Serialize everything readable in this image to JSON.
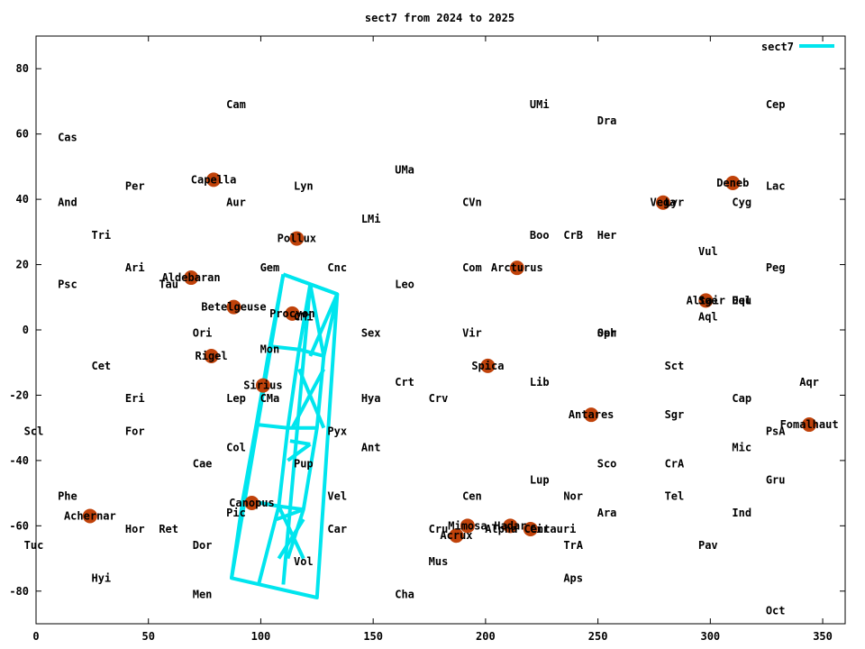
{
  "chart_data": {
    "type": "scatter",
    "title": "sect7 from 2024 to 2025",
    "xlabel": "",
    "ylabel": "",
    "xlim": [
      0,
      360
    ],
    "ylim": [
      -90,
      90
    ],
    "x_ticks": [
      0,
      50,
      100,
      150,
      200,
      250,
      300,
      350
    ],
    "y_ticks": [
      -80,
      -60,
      -40,
      -20,
      0,
      20,
      40,
      60,
      80
    ],
    "grid": false,
    "legend": {
      "position": "top-right",
      "entries": [
        {
          "name": "sect7",
          "color": "#00e5ee"
        }
      ]
    },
    "colors": {
      "series": "#00e5ee",
      "star": "#c0420a",
      "axes": "#000000"
    },
    "constellations": [
      {
        "name": "Cam",
        "x": 89,
        "y": 69
      },
      {
        "name": "UMi",
        "x": 224,
        "y": 69
      },
      {
        "name": "Cep",
        "x": 329,
        "y": 69
      },
      {
        "name": "Cas",
        "x": 14,
        "y": 59
      },
      {
        "name": "Dra",
        "x": 254,
        "y": 64
      },
      {
        "name": "UMa",
        "x": 164,
        "y": 49
      },
      {
        "name": "Per",
        "x": 44,
        "y": 44
      },
      {
        "name": "Lyn",
        "x": 119,
        "y": 44
      },
      {
        "name": "Lac",
        "x": 329,
        "y": 44
      },
      {
        "name": "And",
        "x": 14,
        "y": 39
      },
      {
        "name": "Aur",
        "x": 89,
        "y": 39
      },
      {
        "name": "CVn",
        "x": 194,
        "y": 39
      },
      {
        "name": "Lyr",
        "x": 284,
        "y": 39
      },
      {
        "name": "Cyg",
        "x": 314,
        "y": 39
      },
      {
        "name": "LMi",
        "x": 149,
        "y": 34
      },
      {
        "name": "Tri",
        "x": 29,
        "y": 29
      },
      {
        "name": "Boo",
        "x": 224,
        "y": 29
      },
      {
        "name": "CrB",
        "x": 239,
        "y": 29
      },
      {
        "name": "Her",
        "x": 254,
        "y": 29
      },
      {
        "name": "Vul",
        "x": 299,
        "y": 24
      },
      {
        "name": "Ari",
        "x": 44,
        "y": 19
      },
      {
        "name": "Gem",
        "x": 104,
        "y": 19
      },
      {
        "name": "Cnc",
        "x": 134,
        "y": 19
      },
      {
        "name": "Com",
        "x": 194,
        "y": 19
      },
      {
        "name": "Peg",
        "x": 329,
        "y": 19
      },
      {
        "name": "Psc",
        "x": 14,
        "y": 14
      },
      {
        "name": "Tau",
        "x": 59,
        "y": 14
      },
      {
        "name": "Leo",
        "x": 164,
        "y": 14
      },
      {
        "name": "Sge",
        "x": 299,
        "y": 9
      },
      {
        "name": "Del",
        "x": 314,
        "y": 9
      },
      {
        "name": "Equ",
        "x": 314,
        "y": 9
      },
      {
        "name": "CMi",
        "x": 119,
        "y": 4
      },
      {
        "name": "Aql",
        "x": 299,
        "y": 4
      },
      {
        "name": "Ori",
        "x": 74,
        "y": -1
      },
      {
        "name": "Sex",
        "x": 149,
        "y": -1
      },
      {
        "name": "Vir",
        "x": 194,
        "y": -1
      },
      {
        "name": "Oph",
        "x": 254,
        "y": -1
      },
      {
        "name": "Ser",
        "x": 254,
        "y": -1
      },
      {
        "name": "Mon",
        "x": 104,
        "y": -6
      },
      {
        "name": "Cet",
        "x": 29,
        "y": -11
      },
      {
        "name": "Sct",
        "x": 284,
        "y": -11
      },
      {
        "name": "Crt",
        "x": 164,
        "y": -16
      },
      {
        "name": "Lib",
        "x": 224,
        "y": -16
      },
      {
        "name": "Aqr",
        "x": 344,
        "y": -16
      },
      {
        "name": "Eri",
        "x": 44,
        "y": -21
      },
      {
        "name": "Lep",
        "x": 89,
        "y": -21
      },
      {
        "name": "CMa",
        "x": 104,
        "y": -21
      },
      {
        "name": "Hya",
        "x": 149,
        "y": -21
      },
      {
        "name": "Crv",
        "x": 179,
        "y": -21
      },
      {
        "name": "Cap",
        "x": 314,
        "y": -21
      },
      {
        "name": "Sgr",
        "x": 284,
        "y": -26
      },
      {
        "name": "Scl",
        "x": -1,
        "y": -31
      },
      {
        "name": "For",
        "x": 44,
        "y": -31
      },
      {
        "name": "Pyx",
        "x": 134,
        "y": -31
      },
      {
        "name": "PsA",
        "x": 329,
        "y": -31
      },
      {
        "name": "Col",
        "x": 89,
        "y": -36
      },
      {
        "name": "Ant",
        "x": 149,
        "y": -36
      },
      {
        "name": "Mic",
        "x": 314,
        "y": -36
      },
      {
        "name": "Cae",
        "x": 74,
        "y": -41
      },
      {
        "name": "Pup",
        "x": 119,
        "y": -41
      },
      {
        "name": "Sco",
        "x": 254,
        "y": -41
      },
      {
        "name": "CrA",
        "x": 284,
        "y": -41
      },
      {
        "name": "Lup",
        "x": 224,
        "y": -46
      },
      {
        "name": "Gru",
        "x": 329,
        "y": -46
      },
      {
        "name": "Phe",
        "x": 14,
        "y": -51
      },
      {
        "name": "Vel",
        "x": 134,
        "y": -51
      },
      {
        "name": "Cen",
        "x": 194,
        "y": -51
      },
      {
        "name": "Nor",
        "x": 239,
        "y": -51
      },
      {
        "name": "Tel",
        "x": 284,
        "y": -51
      },
      {
        "name": "Pic",
        "x": 89,
        "y": -56
      },
      {
        "name": "Ara",
        "x": 254,
        "y": -56
      },
      {
        "name": "Ind",
        "x": 314,
        "y": -56
      },
      {
        "name": "Hor",
        "x": 44,
        "y": -61
      },
      {
        "name": "Ret",
        "x": 59,
        "y": -61
      },
      {
        "name": "Car",
        "x": 134,
        "y": -61
      },
      {
        "name": "Cru",
        "x": 179,
        "y": -61
      },
      {
        "name": "Cir",
        "x": 224,
        "y": -61
      },
      {
        "name": "Tuc",
        "x": -1,
        "y": -66
      },
      {
        "name": "Dor",
        "x": 74,
        "y": -66
      },
      {
        "name": "TrA",
        "x": 239,
        "y": -66
      },
      {
        "name": "Pav",
        "x": 299,
        "y": -66
      },
      {
        "name": "Vol",
        "x": 119,
        "y": -71
      },
      {
        "name": "Mus",
        "x": 179,
        "y": -71
      },
      {
        "name": "Hyi",
        "x": 29,
        "y": -76
      },
      {
        "name": "Aps",
        "x": 239,
        "y": -76
      },
      {
        "name": "Men",
        "x": 74,
        "y": -81
      },
      {
        "name": "Cha",
        "x": 164,
        "y": -81
      },
      {
        "name": "Oct",
        "x": 329,
        "y": -86
      }
    ],
    "stars": [
      {
        "name": "Capella",
        "x": 79,
        "y": 46
      },
      {
        "name": "Deneb",
        "x": 310,
        "y": 45
      },
      {
        "name": "Vega",
        "x": 279,
        "y": 39
      },
      {
        "name": "Pollux",
        "x": 116,
        "y": 28
      },
      {
        "name": "Arcturus",
        "x": 214,
        "y": 19
      },
      {
        "name": "Aldebaran",
        "x": 69,
        "y": 16
      },
      {
        "name": "Altair",
        "x": 298,
        "y": 9
      },
      {
        "name": "Betelgeuse",
        "x": 88,
        "y": 7
      },
      {
        "name": "Procyon",
        "x": 114,
        "y": 5
      },
      {
        "name": "Rigel",
        "x": 78,
        "y": -8
      },
      {
        "name": "Spica",
        "x": 201,
        "y": -11
      },
      {
        "name": "Sirius",
        "x": 101,
        "y": -17
      },
      {
        "name": "Antares",
        "x": 247,
        "y": -26
      },
      {
        "name": "Fomalhaut",
        "x": 344,
        "y": -29
      },
      {
        "name": "Canopus",
        "x": 96,
        "y": -53
      },
      {
        "name": "Achernar",
        "x": 24,
        "y": -57
      },
      {
        "name": "Mimosa",
        "x": 192,
        "y": -60
      },
      {
        "name": "Hadar",
        "x": 211,
        "y": -60
      },
      {
        "name": "Alpha Centauri",
        "x": 220,
        "y": -61
      },
      {
        "name": "Acrux",
        "x": 187,
        "y": -63
      }
    ],
    "series": [
      {
        "name": "sect7",
        "color": "#00e5ee",
        "segments": [
          [
            [
              110,
              17
            ],
            [
              134,
              11
            ],
            [
              125,
              -82
            ],
            [
              87,
              -76
            ],
            [
              110,
              17
            ]
          ],
          [
            [
              110,
              17
            ],
            [
              104,
              -5
            ],
            [
              98,
              -29
            ],
            [
              92,
              -52
            ],
            [
              87,
              -76
            ]
          ],
          [
            [
              122,
              14
            ],
            [
              117,
              -6
            ],
            [
              112,
              -30
            ],
            [
              108,
              -54
            ],
            [
              99,
              -78
            ]
          ],
          [
            [
              122,
              14
            ],
            [
              122,
              14
            ],
            [
              110,
              -78
            ]
          ],
          [
            [
              110,
              17
            ],
            [
              122,
              14
            ],
            [
              134,
              11
            ]
          ],
          [
            [
              104,
              -5
            ],
            [
              117,
              -6
            ],
            [
              128,
              -8
            ]
          ],
          [
            [
              98,
              -29
            ],
            [
              112,
              -30
            ],
            [
              125,
              -30
            ]
          ],
          [
            [
              92,
              -52
            ],
            [
              108,
              -54
            ],
            [
              119,
              -55
            ]
          ],
          [
            [
              134,
              11
            ],
            [
              128,
              -8
            ],
            [
              125,
              -30
            ],
            [
              119,
              -55
            ],
            [
              112,
              -70
            ]
          ],
          [
            [
              122,
              14
            ],
            [
              128,
              -8
            ]
          ],
          [
            [
              134,
              11
            ],
            [
              122,
              -8
            ]
          ],
          [
            [
              117,
              -12
            ],
            [
              128,
              -30
            ]
          ],
          [
            [
              128,
              -12
            ],
            [
              114,
              -30
            ]
          ],
          [
            [
              113,
              -34
            ],
            [
              122,
              -35
            ]
          ],
          [
            [
              112,
              -40
            ],
            [
              122,
              -35
            ]
          ],
          [
            [
              107,
              -58
            ],
            [
              119,
              -55
            ]
          ],
          [
            [
              108,
              -54
            ],
            [
              119,
              -70
            ]
          ],
          [
            [
              119,
              -58
            ],
            [
              108,
              -70
            ]
          ]
        ]
      }
    ]
  }
}
